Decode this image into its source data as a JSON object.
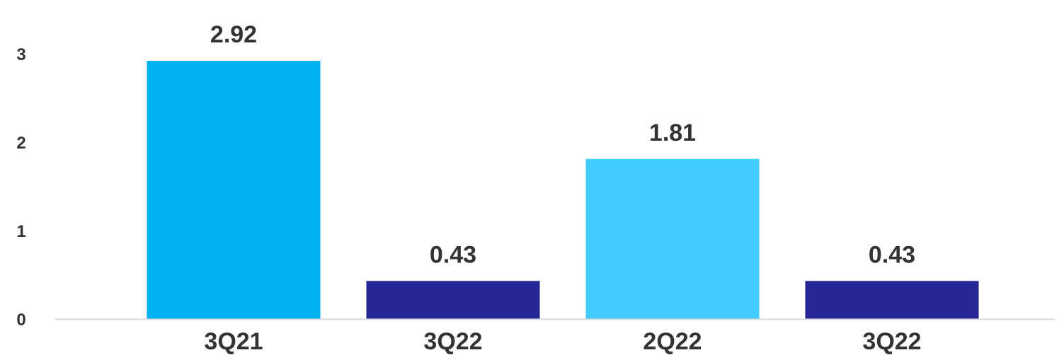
{
  "chart_data": {
    "type": "bar",
    "title": "",
    "xlabel": "",
    "ylabel": "",
    "categories": [
      "3Q21",
      "3Q22",
      "2Q22",
      "3Q22"
    ],
    "values": [
      2.92,
      0.43,
      1.81,
      0.43
    ],
    "data_labels": [
      "2.92",
      "0.43",
      "1.81",
      "0.43"
    ],
    "colors": [
      "#00B0F0",
      "#262696",
      "#40CCFF",
      "#262696"
    ],
    "ylim": [
      0,
      3
    ],
    "yticks": [
      0,
      1,
      2,
      3
    ],
    "ytick_labels": [
      "0",
      "1",
      "2",
      "3"
    ],
    "grid": false,
    "legend": "none",
    "axis_line_color": "#D9D9D9"
  }
}
